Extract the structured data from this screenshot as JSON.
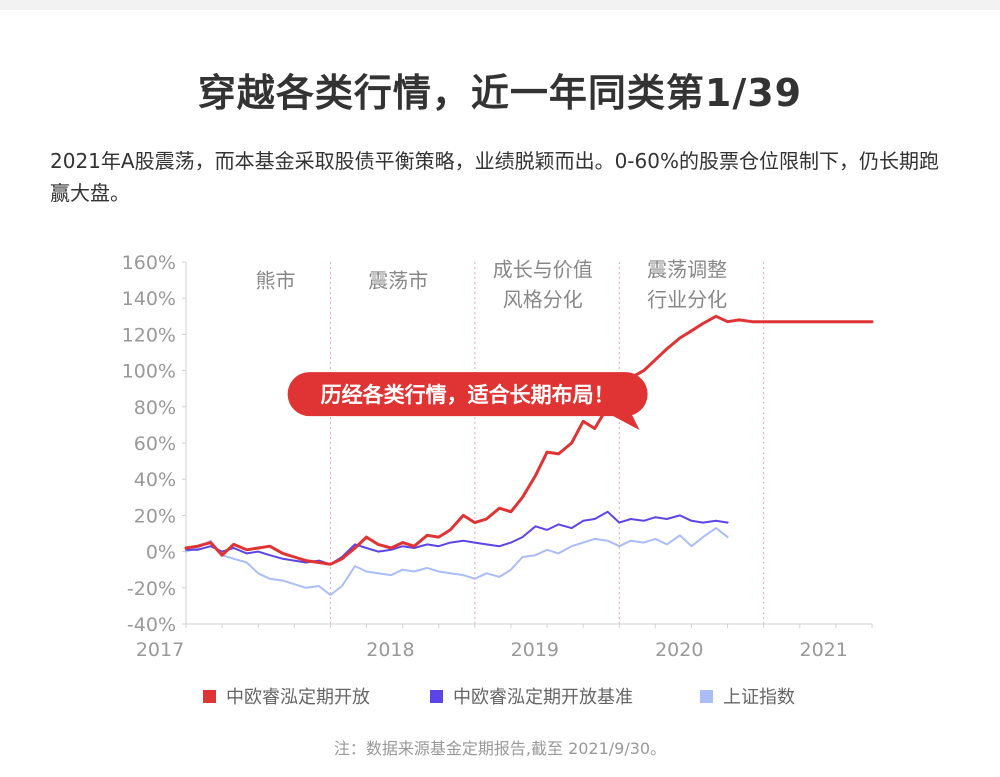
{
  "header": {
    "title": "穿越各类行情，近一年同类第1/39",
    "description": "2021年A股震荡，而本基金采取股债平衡策略，业绩脱颖而出。0-60%的股票仓位限制下，仍长期跑赢大盘。"
  },
  "colors": {
    "fund": "#e03333",
    "benchmark": "#5b45e6",
    "index": "#aabdf7",
    "grid_divider": "#e9a6b6",
    "axis_text": "#999999"
  },
  "footnote": "注：数据来源基金定期报告,截至 2021/9/30。",
  "chart_data": {
    "type": "line",
    "title": "",
    "xlabel": "",
    "ylabel": "",
    "ylim": [
      -40,
      160
    ],
    "xlim": [
      2017.0,
      2021.75
    ],
    "y_ticks": [
      160,
      140,
      120,
      100,
      80,
      60,
      40,
      20,
      0,
      -20,
      -40
    ],
    "y_tick_labels": [
      "160%",
      "140%",
      "120%",
      "100%",
      "80%",
      "60%",
      "40%",
      "20%",
      "0%",
      "-20%",
      "-40%"
    ],
    "x_tick_labels": [
      {
        "label": "2017",
        "x": 2017.0
      },
      {
        "label": "2018",
        "x": 2018.0
      },
      {
        "label": "2019",
        "x": 2019.0
      },
      {
        "label": "2020",
        "x": 2020.0
      },
      {
        "label": "2021",
        "x": 2021.0
      }
    ],
    "dividers": [
      2018.0,
      2019.0,
      2020.0,
      2021.0
    ],
    "phases": [
      {
        "lines": [
          "熊市"
        ],
        "x": 2017.62,
        "y": 146
      },
      {
        "lines": [
          "震荡市"
        ],
        "x": 2018.47,
        "y": 146
      },
      {
        "lines": [
          "成长与价值",
          "风格分化"
        ],
        "x": 2019.47,
        "y": 152
      },
      {
        "lines": [
          "震荡调整",
          "行业分化"
        ],
        "x": 2020.47,
        "y": 152
      }
    ],
    "callout": {
      "text": "历经各类行情，适合长期布局！",
      "x": 2018.95,
      "y": 87
    },
    "legend_position": "bottom",
    "series": [
      {
        "name": "中欧睿泓定期开放",
        "color": "#e03333",
        "x": [
          2017.0,
          2017.08,
          2017.17,
          2017.25,
          2017.33,
          2017.42,
          2017.5,
          2017.58,
          2017.67,
          2017.75,
          2017.83,
          2017.92,
          2018.0,
          2018.08,
          2018.17,
          2018.25,
          2018.33,
          2018.42,
          2018.5,
          2018.58,
          2018.67,
          2018.75,
          2018.83,
          2018.92,
          2019.0,
          2019.08,
          2019.17,
          2019.25,
          2019.33,
          2019.42,
          2019.5,
          2019.58,
          2019.67,
          2019.75,
          2019.83,
          2019.92,
          2020.0,
          2020.08,
          2020.17,
          2020.25,
          2020.33,
          2020.42,
          2020.5,
          2020.58,
          2020.67,
          2020.75,
          2020.83,
          2020.92,
          2021.0,
          2021.08,
          2021.17,
          2021.25,
          2021.33,
          2021.42,
          2021.5,
          2021.58,
          2021.67,
          2021.75
        ],
        "values": [
          2,
          3,
          5,
          -2,
          4,
          1,
          2,
          3,
          -1,
          -3,
          -5,
          -6,
          -7,
          -4,
          2,
          8,
          4,
          2,
          5,
          3,
          9,
          8,
          12,
          20,
          16,
          18,
          24,
          22,
          30,
          42,
          55,
          54,
          60,
          72,
          68,
          80,
          90,
          96,
          100,
          106,
          112,
          118,
          122,
          126,
          130,
          127,
          128,
          127,
          127,
          127,
          127,
          127,
          127,
          127,
          127,
          127,
          127,
          127
        ]
      },
      {
        "name": "中欧睿泓定期开放基准",
        "color": "#5b45e6",
        "x": [
          2017.0,
          2017.08,
          2017.17,
          2017.25,
          2017.33,
          2017.42,
          2017.5,
          2017.58,
          2017.67,
          2017.75,
          2017.83,
          2017.92,
          2018.0,
          2018.08,
          2018.17,
          2018.25,
          2018.33,
          2018.42,
          2018.5,
          2018.58,
          2018.67,
          2018.75,
          2018.83,
          2018.92,
          2019.0,
          2019.08,
          2019.17,
          2019.25,
          2019.33,
          2019.42,
          2019.5,
          2019.58,
          2019.67,
          2019.75,
          2019.83,
          2019.92,
          2020.0,
          2020.08,
          2020.17,
          2020.25,
          2020.33,
          2020.42,
          2020.5,
          2020.58,
          2020.67,
          2020.75
        ],
        "values": [
          1,
          1,
          3,
          0,
          2,
          -1,
          0,
          -2,
          -4,
          -5,
          -6,
          -5,
          -7,
          -3,
          4,
          2,
          0,
          1,
          3,
          2,
          4,
          3,
          5,
          6,
          5,
          4,
          3,
          5,
          8,
          14,
          12,
          15,
          13,
          17,
          18,
          22,
          16,
          18,
          17,
          19,
          18,
          20,
          17,
          16,
          17,
          16
        ]
      },
      {
        "name": "上证指数",
        "color": "#aabdf7",
        "x": [
          2017.0,
          2017.08,
          2017.17,
          2017.25,
          2017.33,
          2017.42,
          2017.5,
          2017.58,
          2017.67,
          2017.75,
          2017.83,
          2017.92,
          2018.0,
          2018.08,
          2018.17,
          2018.25,
          2018.33,
          2018.42,
          2018.5,
          2018.58,
          2018.67,
          2018.75,
          2018.83,
          2018.92,
          2019.0,
          2019.08,
          2019.17,
          2019.25,
          2019.33,
          2019.42,
          2019.5,
          2019.58,
          2019.67,
          2019.75,
          2019.83,
          2019.92,
          2020.0,
          2020.08,
          2020.17,
          2020.25,
          2020.33,
          2020.42,
          2020.5,
          2020.58,
          2020.67,
          2020.75
        ],
        "values": [
          0,
          2,
          6,
          -2,
          -4,
          -6,
          -12,
          -15,
          -16,
          -18,
          -20,
          -19,
          -24,
          -19,
          -8,
          -11,
          -12,
          -13,
          -10,
          -11,
          -9,
          -11,
          -12,
          -13,
          -15,
          -12,
          -14,
          -10,
          -3,
          -2,
          1,
          -1,
          3,
          5,
          7,
          6,
          3,
          6,
          5,
          7,
          4,
          9,
          3,
          8,
          13,
          8
        ]
      }
    ]
  }
}
